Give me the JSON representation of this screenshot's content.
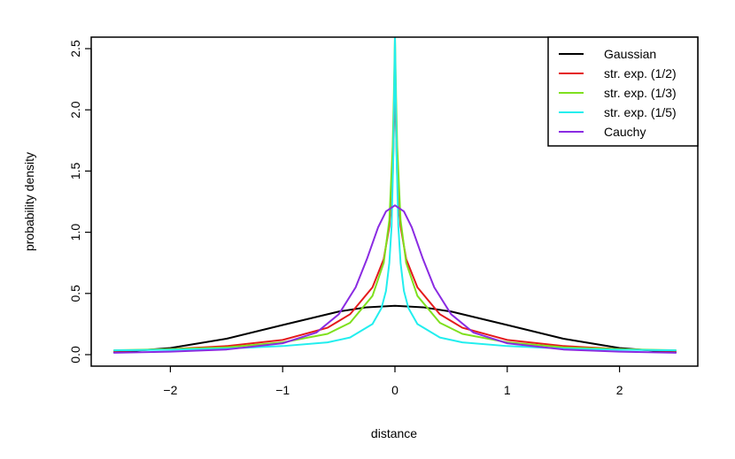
{
  "chart_data": {
    "type": "line",
    "title": "",
    "xlabel": "distance",
    "ylabel": "probability density",
    "xlim": [
      -2.5,
      2.5
    ],
    "ylim": [
      0,
      2.5
    ],
    "xticks": [
      -2,
      -1,
      0,
      1,
      2
    ],
    "yticks": [
      0.0,
      0.5,
      1.0,
      1.5,
      2.0,
      2.5
    ],
    "xtick_labels": [
      "−2",
      "−1",
      "0",
      "1",
      "2"
    ],
    "ytick_labels": [
      "0.0",
      "0.5",
      "1.0",
      "1.5",
      "2.0",
      "2.5"
    ],
    "grid": false,
    "legend_position": "top-right",
    "series": [
      {
        "name": "Gaussian",
        "color": "#000000",
        "x": [
          -2.5,
          -2.0,
          -1.5,
          -1.0,
          -0.5,
          -0.25,
          0,
          0.25,
          0.5,
          1.0,
          1.5,
          2.0,
          2.5
        ],
        "y": [
          0.018,
          0.054,
          0.13,
          0.242,
          0.352,
          0.387,
          0.399,
          0.387,
          0.352,
          0.242,
          0.13,
          0.054,
          0.018
        ]
      },
      {
        "name": "str. exp. (1/2)",
        "color": "#e41a1c",
        "x": [
          -2.5,
          -2.0,
          -1.5,
          -1.0,
          -0.6,
          -0.4,
          -0.2,
          -0.1,
          -0.05,
          -0.02,
          0,
          0.02,
          0.05,
          0.1,
          0.2,
          0.4,
          0.6,
          1.0,
          1.5,
          2.0,
          2.5
        ],
        "y": [
          0.03,
          0.045,
          0.07,
          0.12,
          0.22,
          0.33,
          0.55,
          0.78,
          1.05,
          1.45,
          2.2,
          1.45,
          1.05,
          0.78,
          0.55,
          0.33,
          0.22,
          0.12,
          0.07,
          0.045,
          0.03
        ]
      },
      {
        "name": "str. exp. (1/3)",
        "color": "#7fe01e",
        "x": [
          -2.5,
          -2.0,
          -1.5,
          -1.0,
          -0.6,
          -0.4,
          -0.2,
          -0.1,
          -0.05,
          -0.02,
          -0.01,
          0,
          0.01,
          0.02,
          0.05,
          0.1,
          0.2,
          0.4,
          0.6,
          1.0,
          1.5,
          2.0,
          2.5
        ],
        "y": [
          0.035,
          0.045,
          0.06,
          0.1,
          0.17,
          0.26,
          0.48,
          0.75,
          1.1,
          1.7,
          2.1,
          2.6,
          2.1,
          1.7,
          1.1,
          0.75,
          0.48,
          0.26,
          0.17,
          0.1,
          0.06,
          0.045,
          0.035
        ]
      },
      {
        "name": "str. exp. (1/5)",
        "color": "#22eeee",
        "x": [
          -2.5,
          -2.0,
          -1.5,
          -1.0,
          -0.6,
          -0.4,
          -0.2,
          -0.12,
          -0.08,
          -0.05,
          -0.03,
          -0.015,
          0,
          0.015,
          0.03,
          0.05,
          0.08,
          0.12,
          0.2,
          0.4,
          0.6,
          1.0,
          1.5,
          2.0,
          2.5
        ],
        "y": [
          0.035,
          0.04,
          0.05,
          0.07,
          0.1,
          0.14,
          0.25,
          0.38,
          0.52,
          0.75,
          1.05,
          1.6,
          2.6,
          1.6,
          1.05,
          0.75,
          0.52,
          0.38,
          0.25,
          0.14,
          0.1,
          0.07,
          0.05,
          0.04,
          0.035
        ]
      },
      {
        "name": "Cauchy",
        "color": "#8a2be2",
        "x": [
          -2.5,
          -2.0,
          -1.5,
          -1.0,
          -0.7,
          -0.5,
          -0.35,
          -0.25,
          -0.15,
          -0.08,
          0,
          0.08,
          0.15,
          0.25,
          0.35,
          0.5,
          0.7,
          1.0,
          1.5,
          2.0,
          2.5
        ],
        "y": [
          0.015,
          0.024,
          0.042,
          0.093,
          0.18,
          0.33,
          0.55,
          0.78,
          1.04,
          1.17,
          1.22,
          1.17,
          1.04,
          0.78,
          0.55,
          0.33,
          0.18,
          0.093,
          0.042,
          0.024,
          0.015
        ]
      }
    ]
  }
}
